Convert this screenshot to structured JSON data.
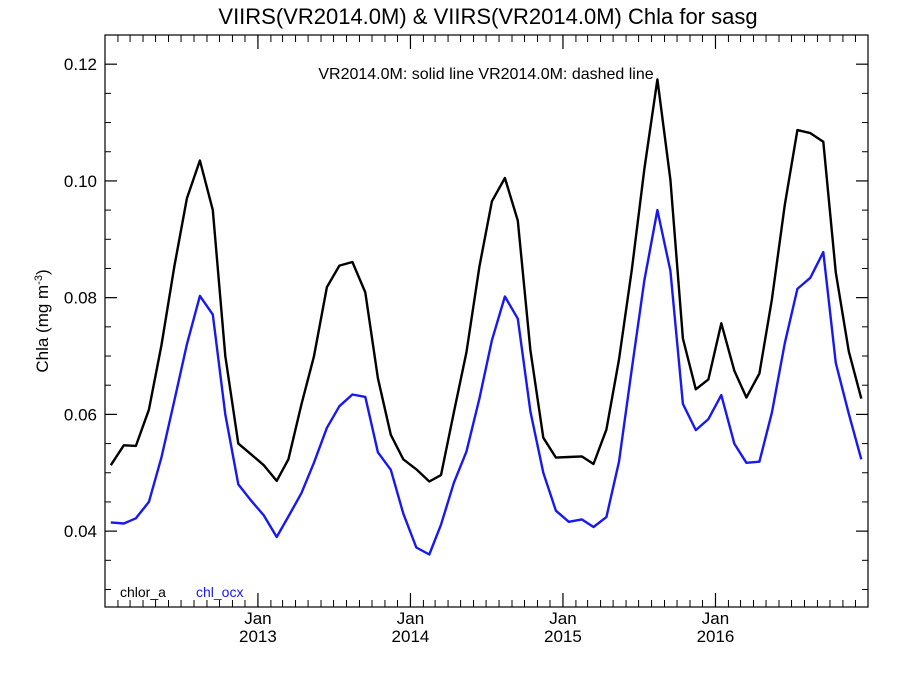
{
  "chart_data": {
    "type": "line",
    "title": "VIIRS(VR2014.0M) & VIIRS(VR2014.0M)  Chla for sasg",
    "ylabel": "Chla (mg m",
    "ylabel_sup": "-3",
    "ylabel_close": ")",
    "annotation": "VR2014.0M: solid line   VR2014.0M: dashed line",
    "xlim": [
      "2012-01-01",
      "2016-12-31"
    ],
    "ylim": [
      0.027,
      0.125
    ],
    "yticks": [
      0.04,
      0.06,
      0.08,
      0.1,
      0.12
    ],
    "ytick_labels": [
      "0.04",
      "0.06",
      "0.08",
      "0.10",
      "0.12"
    ],
    "xticks": [
      {
        "date": "2013-01-01",
        "label_month": "Jan",
        "label_year": "2013"
      },
      {
        "date": "2014-01-01",
        "label_month": "Jan",
        "label_year": "2014"
      },
      {
        "date": "2015-01-01",
        "label_month": "Jan",
        "label_year": "2015"
      },
      {
        "date": "2016-01-01",
        "label_month": "Jan",
        "label_year": "2016"
      }
    ],
    "x": [
      "2012-01-15",
      "2012-02-15",
      "2012-03-15",
      "2012-04-15",
      "2012-05-15",
      "2012-06-15",
      "2012-07-15",
      "2012-08-15",
      "2012-09-15",
      "2012-10-15",
      "2012-11-15",
      "2012-12-15",
      "2013-01-15",
      "2013-02-15",
      "2013-03-15",
      "2013-04-15",
      "2013-05-15",
      "2013-06-15",
      "2013-07-15",
      "2013-08-15",
      "2013-09-15",
      "2013-10-15",
      "2013-11-15",
      "2013-12-15",
      "2014-01-15",
      "2014-02-15",
      "2014-03-15",
      "2014-04-15",
      "2014-05-15",
      "2014-06-15",
      "2014-07-15",
      "2014-08-15",
      "2014-09-15",
      "2014-10-15",
      "2014-11-15",
      "2014-12-15",
      "2015-01-15",
      "2015-02-15",
      "2015-03-15",
      "2015-04-15",
      "2015-05-15",
      "2015-06-15",
      "2015-07-15",
      "2015-08-15",
      "2015-09-15",
      "2015-10-15",
      "2015-11-15",
      "2015-12-15",
      "2016-01-15",
      "2016-02-15",
      "2016-03-15",
      "2016-04-15",
      "2016-05-15",
      "2016-06-15",
      "2016-07-15",
      "2016-08-15",
      "2016-09-15",
      "2016-10-15",
      "2016-11-15",
      "2016-12-15"
    ],
    "series": [
      {
        "name": "chlor_a",
        "color": "#000000",
        "values": [
          0.0513,
          0.0547,
          0.0546,
          0.0608,
          0.0718,
          0.0854,
          0.097,
          0.1035,
          0.095,
          0.07,
          0.055,
          0.0532,
          0.0513,
          0.0486,
          0.0523,
          0.0617,
          0.0699,
          0.0818,
          0.0855,
          0.0861,
          0.0809,
          0.0662,
          0.0565,
          0.0523,
          0.0506,
          0.0485,
          0.0496,
          0.0604,
          0.0706,
          0.0853,
          0.0965,
          0.1005,
          0.0932,
          0.071,
          0.056,
          0.0526,
          0.0527,
          0.0528,
          0.0515,
          0.0574,
          0.0694,
          0.0849,
          0.1021,
          0.1174,
          0.1002,
          0.073,
          0.0643,
          0.066,
          0.0756,
          0.0675,
          0.0629,
          0.067,
          0.0797,
          0.0959,
          0.1087,
          0.1082,
          0.1067,
          0.0843,
          0.0708,
          0.0627
        ]
      },
      {
        "name": "chl_ocx",
        "color": "#1818f0",
        "values": [
          0.0415,
          0.0413,
          0.0422,
          0.045,
          0.0526,
          0.0624,
          0.072,
          0.0803,
          0.0771,
          0.06,
          0.048,
          0.0453,
          0.0427,
          0.039,
          0.0425,
          0.0465,
          0.0517,
          0.0577,
          0.0614,
          0.0634,
          0.063,
          0.0535,
          0.0505,
          0.043,
          0.0372,
          0.036,
          0.0411,
          0.0483,
          0.0536,
          0.0627,
          0.0727,
          0.0802,
          0.0764,
          0.0605,
          0.05,
          0.0435,
          0.0416,
          0.042,
          0.0407,
          0.0424,
          0.0519,
          0.0679,
          0.083,
          0.095,
          0.0846,
          0.0618,
          0.0573,
          0.0592,
          0.0633,
          0.055,
          0.0517,
          0.0519,
          0.0603,
          0.0722,
          0.0815,
          0.0834,
          0.0878,
          0.0688,
          0.0601,
          0.0523
        ]
      }
    ]
  }
}
